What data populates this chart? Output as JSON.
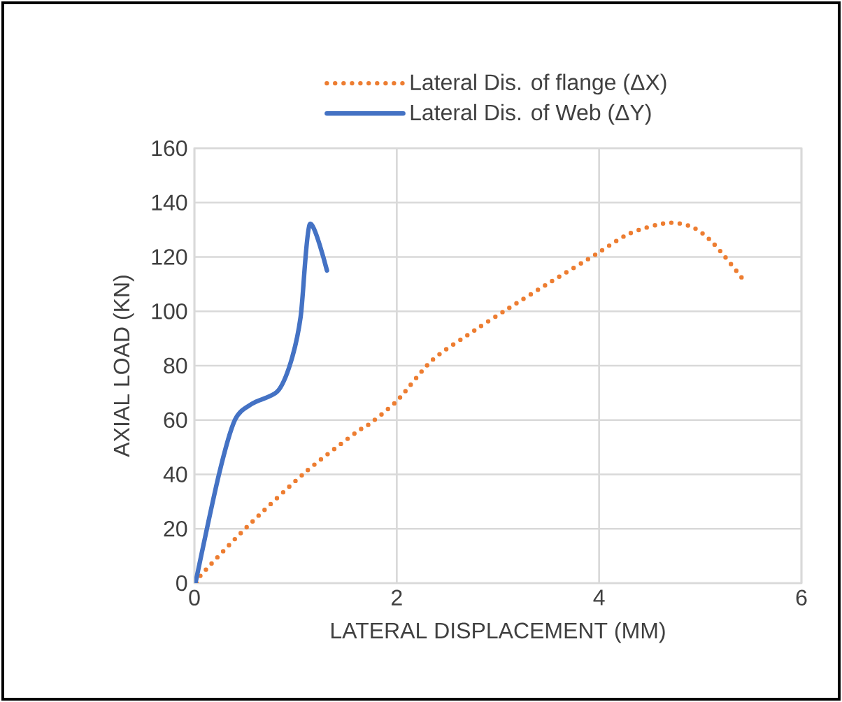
{
  "chart_data": {
    "type": "line",
    "xlabel": "LATERAL DISPLACEMENT (MM)",
    "ylabel": "AXIAL LOAD (KN)",
    "xlim": [
      0,
      6
    ],
    "xticks": [
      0,
      2,
      4,
      6
    ],
    "ylim": [
      0,
      160
    ],
    "yticks": [
      0,
      20,
      40,
      60,
      80,
      100,
      120,
      140,
      160
    ],
    "grid": true,
    "legend": "top",
    "marker": "none",
    "series": [
      {
        "name": "Lateral Dis. of flange (ΔX)",
        "color": "#ed7d31",
        "line_style": "dotted",
        "x": [
          0.02,
          0.08,
          0.52,
          1.09,
          1.6,
          1.71,
          2.0,
          2.35,
          2.77,
          3.1,
          3.53,
          3.97,
          4.3,
          4.67,
          4.92,
          5.13,
          5.45
        ],
        "values": [
          0,
          3.6,
          20.7,
          40.6,
          55.5,
          58,
          67,
          82,
          93,
          101,
          111,
          121,
          128.6,
          132.5,
          131,
          125,
          110.5
        ]
      },
      {
        "name": "Lateral Dis. of Web (ΔY)",
        "color": "#4472c4",
        "line_style": "solid",
        "x": [
          0.01,
          0.24,
          0.4,
          0.57,
          0.82,
          0.95,
          1.05,
          1.14,
          1.31
        ],
        "values": [
          0,
          39.6,
          60,
          66,
          70.5,
          81,
          98,
          132,
          115
        ]
      }
    ]
  }
}
